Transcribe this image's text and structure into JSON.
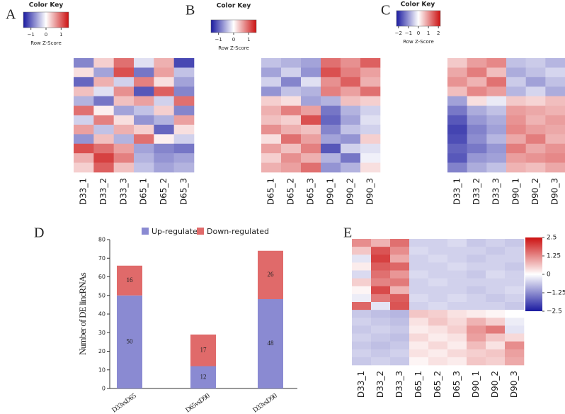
{
  "chart_data": [
    {
      "type": "heatmap",
      "panel": "A",
      "key_title": "Color Key",
      "key_subtitle": "Row Z-Score",
      "zlim": [
        -1.5,
        1.5
      ],
      "zticks": [
        {
          "value": -1,
          "label": "−1"
        },
        0,
        1
      ],
      "columns": [
        "D33_1",
        "D33_2",
        "D33_3",
        "D65_1",
        "D65_2",
        "D65_3"
      ],
      "matrix": [
        [
          -0.8,
          0.3,
          0.9,
          -0.2,
          0.5,
          -1.2
        ],
        [
          0.2,
          -0.6,
          1.1,
          -0.9,
          0.6,
          -0.4
        ],
        [
          -1.0,
          0.5,
          -0.3,
          0.8,
          0.2,
          -0.6
        ],
        [
          0.4,
          -0.2,
          0.7,
          -1.1,
          1.0,
          -0.8
        ],
        [
          -0.5,
          -0.9,
          0.4,
          0.6,
          -0.3,
          0.9
        ],
        [
          0.9,
          0.1,
          -0.6,
          -0.4,
          0.3,
          -0.8
        ],
        [
          -0.3,
          0.8,
          0.2,
          -0.7,
          -0.5,
          0.6
        ],
        [
          0.6,
          -0.4,
          0.5,
          0.3,
          -1.0,
          0.2
        ],
        [
          -0.7,
          0.4,
          -0.5,
          0.9,
          0.1,
          -0.3
        ],
        [
          1.1,
          0.9,
          0.6,
          -0.6,
          -0.8,
          -0.9
        ],
        [
          0.5,
          1.2,
          0.8,
          -0.5,
          -0.7,
          -0.6
        ],
        [
          0.3,
          1.0,
          0.4,
          -0.4,
          -0.6,
          -0.5
        ]
      ]
    },
    {
      "type": "heatmap",
      "panel": "B",
      "key_title": "Color Key",
      "key_subtitle": "Row Z-Score",
      "zlim": [
        -1.5,
        1.5
      ],
      "zticks": [
        {
          "value": -1,
          "label": "−1"
        },
        0,
        1
      ],
      "columns": [
        "D65_1",
        "D65_2",
        "D65_3",
        "D90_1",
        "D90_2",
        "D90_3"
      ],
      "matrix": [
        [
          -0.4,
          -0.5,
          -0.6,
          0.9,
          0.7,
          1.0
        ],
        [
          -0.6,
          -0.3,
          -0.7,
          1.1,
          0.8,
          0.6
        ],
        [
          -0.3,
          -0.8,
          -0.2,
          0.7,
          1.0,
          0.5
        ],
        [
          -0.7,
          -0.4,
          -0.5,
          0.8,
          0.6,
          0.9
        ],
        [
          0.3,
          0.2,
          -0.6,
          -0.5,
          0.4,
          0.3
        ],
        [
          0.5,
          0.8,
          0.6,
          -0.9,
          -0.5,
          -0.3
        ],
        [
          0.4,
          0.3,
          1.1,
          -1.0,
          -0.6,
          -0.2
        ],
        [
          0.7,
          0.5,
          0.4,
          -0.8,
          -0.4,
          -0.3
        ],
        [
          0.2,
          0.9,
          0.6,
          -0.6,
          -0.7,
          0.3
        ],
        [
          0.6,
          0.4,
          0.8,
          -1.1,
          -0.3,
          -0.2
        ],
        [
          0.3,
          0.7,
          0.5,
          -0.5,
          -0.9,
          -0.1
        ],
        [
          0.5,
          0.6,
          0.9,
          -0.7,
          -0.5,
          0.2
        ]
      ]
    },
    {
      "type": "heatmap",
      "panel": "C",
      "key_title": "Color Key",
      "key_subtitle": "Row Z-Score",
      "zlim": [
        -2.2,
        2.2
      ],
      "zticks": [
        {
          "value": -2,
          "label": "−2"
        },
        {
          "value": -1,
          "label": "−1"
        },
        0,
        1,
        2
      ],
      "columns": [
        "D33_1",
        "D33_2",
        "D33_3",
        "D90_1",
        "D90_2",
        "D90_3"
      ],
      "matrix": [
        [
          0.5,
          0.9,
          1.1,
          -0.6,
          -0.5,
          -0.7
        ],
        [
          0.8,
          1.2,
          0.6,
          -0.8,
          -0.6,
          -0.4
        ],
        [
          1.0,
          0.7,
          1.3,
          -0.5,
          -0.9,
          -0.6
        ],
        [
          0.6,
          1.1,
          0.9,
          -0.7,
          -0.4,
          -0.8
        ],
        [
          -0.9,
          0.3,
          -0.2,
          0.5,
          0.4,
          0.6
        ],
        [
          -1.3,
          -0.8,
          -0.6,
          0.9,
          0.8,
          0.7
        ],
        [
          -1.6,
          -1.0,
          -0.8,
          1.0,
          0.7,
          0.9
        ],
        [
          -1.8,
          -1.2,
          -0.9,
          1.1,
          0.9,
          0.8
        ],
        [
          -1.7,
          -1.1,
          -0.7,
          0.8,
          1.2,
          0.7
        ],
        [
          -1.5,
          -1.3,
          -1.0,
          1.2,
          0.8,
          1.0
        ],
        [
          -1.6,
          -1.0,
          -0.9,
          0.9,
          1.0,
          1.1
        ],
        [
          -1.2,
          -0.8,
          -0.6,
          0.7,
          0.6,
          0.8
        ]
      ]
    },
    {
      "type": "bar",
      "panel": "D",
      "stacked": true,
      "ylabel": "Number of DE lincRNAs",
      "categories": [
        "D33vsD65",
        "D65vsD90",
        "D33vsD90"
      ],
      "series": [
        {
          "name": "Up-regulated",
          "color": "#8a8ad2",
          "values": [
            50,
            12,
            48
          ]
        },
        {
          "name": "Down-regulated",
          "color": "#e06a6a",
          "values": [
            16,
            17,
            26
          ]
        }
      ],
      "ylim": [
        0,
        80
      ],
      "yticks": [
        0,
        10,
        20,
        30,
        40,
        50,
        60,
        70,
        80
      ]
    },
    {
      "type": "heatmap",
      "panel": "E",
      "orientation": "vertical",
      "zlim": [
        -2.5,
        2.5
      ],
      "zticks": [
        2.5,
        1.25,
        0,
        {
          "value": -1.25,
          "label": "−1.25"
        },
        {
          "value": -2.5,
          "label": "−2.5"
        }
      ],
      "columns": [
        "D33_1",
        "D33_2",
        "D33_3",
        "D65_1",
        "D65_2",
        "D65_3",
        "D90_1",
        "D90_2",
        "D90_3"
      ],
      "matrix": [
        [
          1.2,
          0.8,
          1.5,
          -0.5,
          -0.5,
          -0.4,
          -0.6,
          -0.5,
          -0.6
        ],
        [
          0.6,
          1.8,
          1.2,
          -0.4,
          -0.5,
          -0.5,
          -0.5,
          -0.6,
          -0.5
        ],
        [
          -0.3,
          2.0,
          0.9,
          -0.5,
          -0.4,
          -0.5,
          -0.6,
          -0.5,
          -0.5
        ],
        [
          0.2,
          1.7,
          1.6,
          -0.5,
          -0.5,
          -0.4,
          -0.5,
          -0.5,
          -0.6
        ],
        [
          -0.4,
          1.5,
          1.1,
          -0.4,
          -0.5,
          -0.5,
          -0.6,
          -0.4,
          -0.5
        ],
        [
          0.5,
          1.3,
          1.4,
          -0.5,
          -0.4,
          -0.5,
          -0.5,
          -0.5,
          -0.5
        ],
        [
          0.1,
          1.9,
          0.8,
          -0.5,
          -0.5,
          -0.5,
          -0.6,
          -0.5,
          -0.4
        ],
        [
          -0.2,
          1.4,
          1.7,
          -0.4,
          -0.5,
          -0.4,
          -0.5,
          -0.6,
          -0.5
        ],
        [
          1.6,
          -0.3,
          1.8,
          -0.5,
          -0.4,
          -0.5,
          -0.5,
          -0.5,
          -0.6
        ],
        [
          -0.6,
          -0.7,
          -0.8,
          0.6,
          0.5,
          0.3,
          0.2,
          0.1,
          0.0
        ],
        [
          -0.5,
          -0.6,
          -0.7,
          0.3,
          0.6,
          0.4,
          0.8,
          0.5,
          -0.2
        ],
        [
          -0.6,
          -0.5,
          -0.6,
          0.2,
          0.3,
          0.5,
          1.1,
          1.4,
          -0.3
        ],
        [
          -0.5,
          -0.6,
          -0.7,
          0.4,
          0.2,
          0.3,
          1.0,
          0.6,
          0.4
        ],
        [
          -0.6,
          -0.7,
          -0.6,
          0.2,
          0.4,
          0.2,
          0.7,
          0.3,
          1.2
        ],
        [
          -0.5,
          -0.6,
          -0.5,
          0.3,
          0.2,
          0.4,
          0.5,
          0.6,
          1.0
        ],
        [
          -0.6,
          -0.5,
          -0.6,
          0.1,
          0.3,
          0.2,
          0.6,
          0.5,
          0.9
        ]
      ]
    }
  ]
}
